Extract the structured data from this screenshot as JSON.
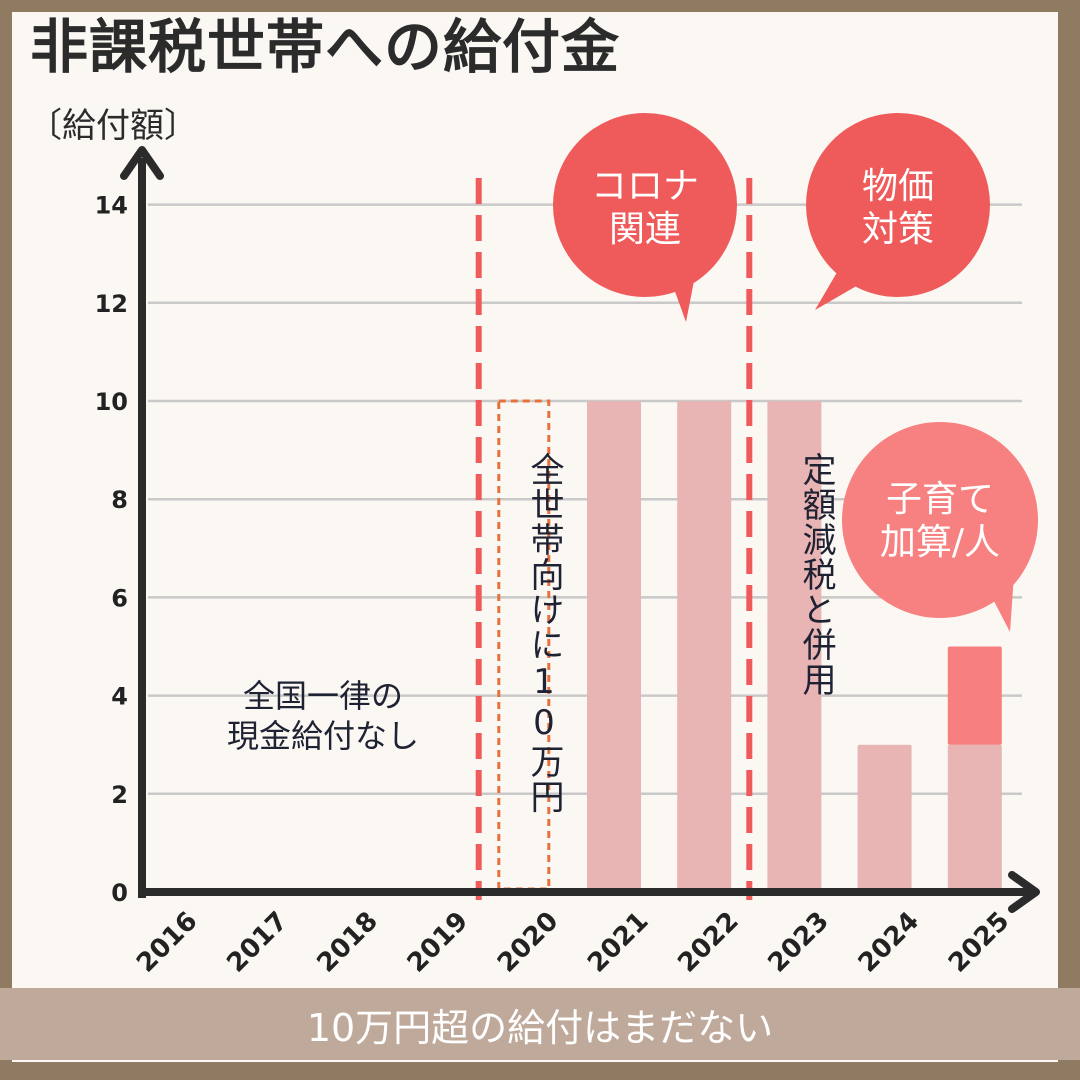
{
  "title": "非課税世帯への給付金",
  "unit_label": "〔給付額〕",
  "footer": "10万円超の給付はまだない",
  "annotations": {
    "no_payment": "全国一律の\n現金給付なし",
    "v2020": "全世帯向けに10万円",
    "v2023": "定額減税と併用"
  },
  "bubbles": {
    "corona": "コロナ\n関連",
    "price": "物価\n対策",
    "child": "子育て\n加算/人"
  },
  "colors": {
    "bar": "#e8b5b4",
    "bar_addon": "#f77f7f",
    "bubble_dark": "#ef5b5b",
    "bubble_light": "#f78080",
    "divider": "#ef5a5a",
    "outline_2020": "#e8703a",
    "axis": "#2b2b2b",
    "grid": "#c9c9c9"
  },
  "chart_data": {
    "type": "bar",
    "categories": [
      "2016",
      "2017",
      "2018",
      "2019",
      "2020",
      "2021",
      "2022",
      "2023",
      "2024",
      "2025"
    ],
    "series": [
      {
        "values": [
          0,
          0,
          0,
          0,
          10,
          10,
          10,
          10,
          3,
          3
        ]
      },
      {
        "values": [
          0,
          0,
          0,
          0,
          0,
          0,
          0,
          0,
          0,
          2
        ]
      }
    ],
    "bar_styles": [
      "none",
      "none",
      "none",
      "none",
      "dashed-outline",
      "solid",
      "solid",
      "solid",
      "solid",
      "solid"
    ],
    "yticks": [
      0,
      2,
      4,
      6,
      8,
      10,
      12,
      14
    ],
    "ylim": [
      0,
      14.5
    ],
    "dividers_between": [
      [
        "2019",
        "2020"
      ],
      [
        "2022",
        "2023"
      ]
    ],
    "grid": true
  }
}
